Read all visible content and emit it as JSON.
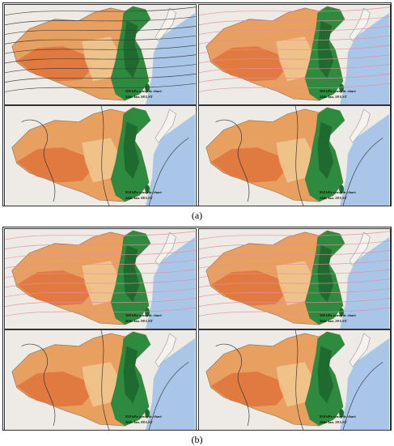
{
  "figure": {
    "groups": [
      {
        "id": "a",
        "caption": "(a)",
        "panels": [
          {
            "level": "500 hPa synoptic chart",
            "time": "24th Jan. 08 LST",
            "contour_color": "#3a3a3a"
          },
          {
            "level": "500 hPa synoptic chart",
            "time": "24th Jan. 20 LST",
            "contour_color": "#e88aa0"
          },
          {
            "level": "850 hPa synoptic chart",
            "time": "24th Jan. 08 LST",
            "contour_color": "#2a2a2a"
          },
          {
            "level": "850 hPa synoptic chart",
            "time": "24th Jan. 20 LST",
            "contour_color": "#2a2a2a"
          }
        ]
      },
      {
        "id": "b",
        "caption": "(b)",
        "panels": [
          {
            "level": "500 hPa synoptic chart",
            "time": "26th Jan. 08 LST",
            "contour_color": "#e88aa0"
          },
          {
            "level": "500 hPa synoptic chart",
            "time": "26th Jan. 20 LST",
            "contour_color": "#e88aa0"
          },
          {
            "level": "850 hPa synoptic chart",
            "time": "26th Jan. 08 LST",
            "contour_color": "#2a2a2a"
          },
          {
            "level": "850 hPa synoptic chart",
            "time": "26th Jan. 20 LST",
            "contour_color": "#2a2a2a"
          }
        ]
      }
    ]
  },
  "colors": {
    "sea": "#a9c6e8",
    "land_outside": "#eeeae6",
    "dry": "#e8a060",
    "plateau": "#e07a40",
    "moist": "#f0c890",
    "green": "#2e8a3e",
    "dark_green": "#1f6a2e"
  }
}
